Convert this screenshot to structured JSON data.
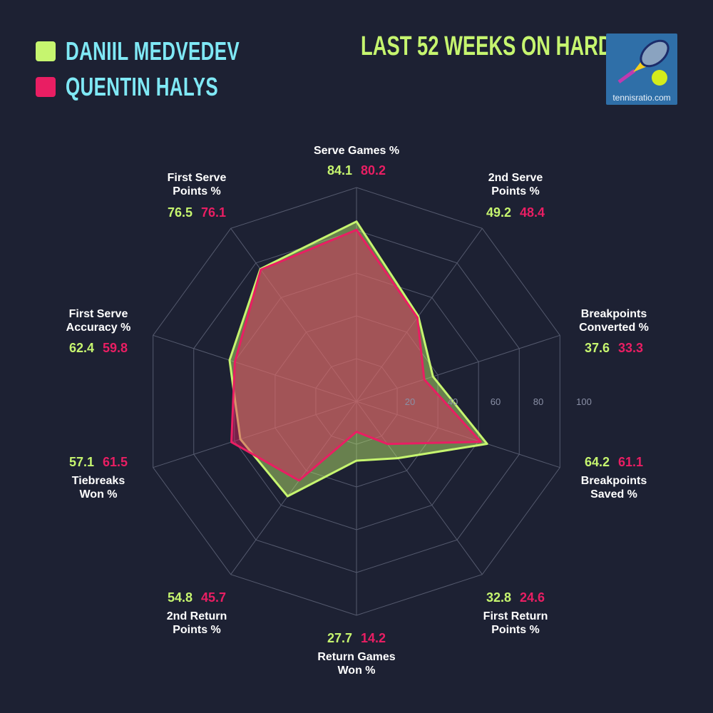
{
  "header": {
    "title": "LAST 52 WEEKS ON HARD",
    "logo_text": "tennisratio.com"
  },
  "colors": {
    "background": "#1d2133",
    "player1": "#c6f56f",
    "player2": "#e91e63",
    "name_text": "#7fe8f5",
    "grid": "#555a6e"
  },
  "chart_data": {
    "type": "radar",
    "title": "LAST 52 WEEKS ON HARD",
    "categories": [
      "Serve Games %",
      "2nd Serve\nPoints %",
      "Breakpoints\nConverted %",
      "Breakpoints\nSaved %",
      "First Return\nPoints %",
      "Return Games\nWon %",
      "2nd Return\nPoints %",
      "Tiebreaks\nWon %",
      "First Serve\nAccuracy %",
      "First Serve\nPoints %"
    ],
    "series": [
      {
        "name": "DANIIL MEDVEDEV",
        "color": "#c6f56f",
        "values": [
          84.1,
          49.2,
          37.6,
          64.2,
          32.8,
          27.7,
          54.8,
          57.1,
          62.4,
          76.5
        ]
      },
      {
        "name": "QUENTIN HALYS",
        "color": "#e91e63",
        "values": [
          80.2,
          48.4,
          33.3,
          61.1,
          24.6,
          14.2,
          45.7,
          61.5,
          59.8,
          76.1
        ]
      }
    ],
    "rlim": [
      0,
      100
    ],
    "ticks": [
      "20",
      "40",
      "60",
      "80",
      "100"
    ],
    "legend": "top-left",
    "grid": true
  }
}
